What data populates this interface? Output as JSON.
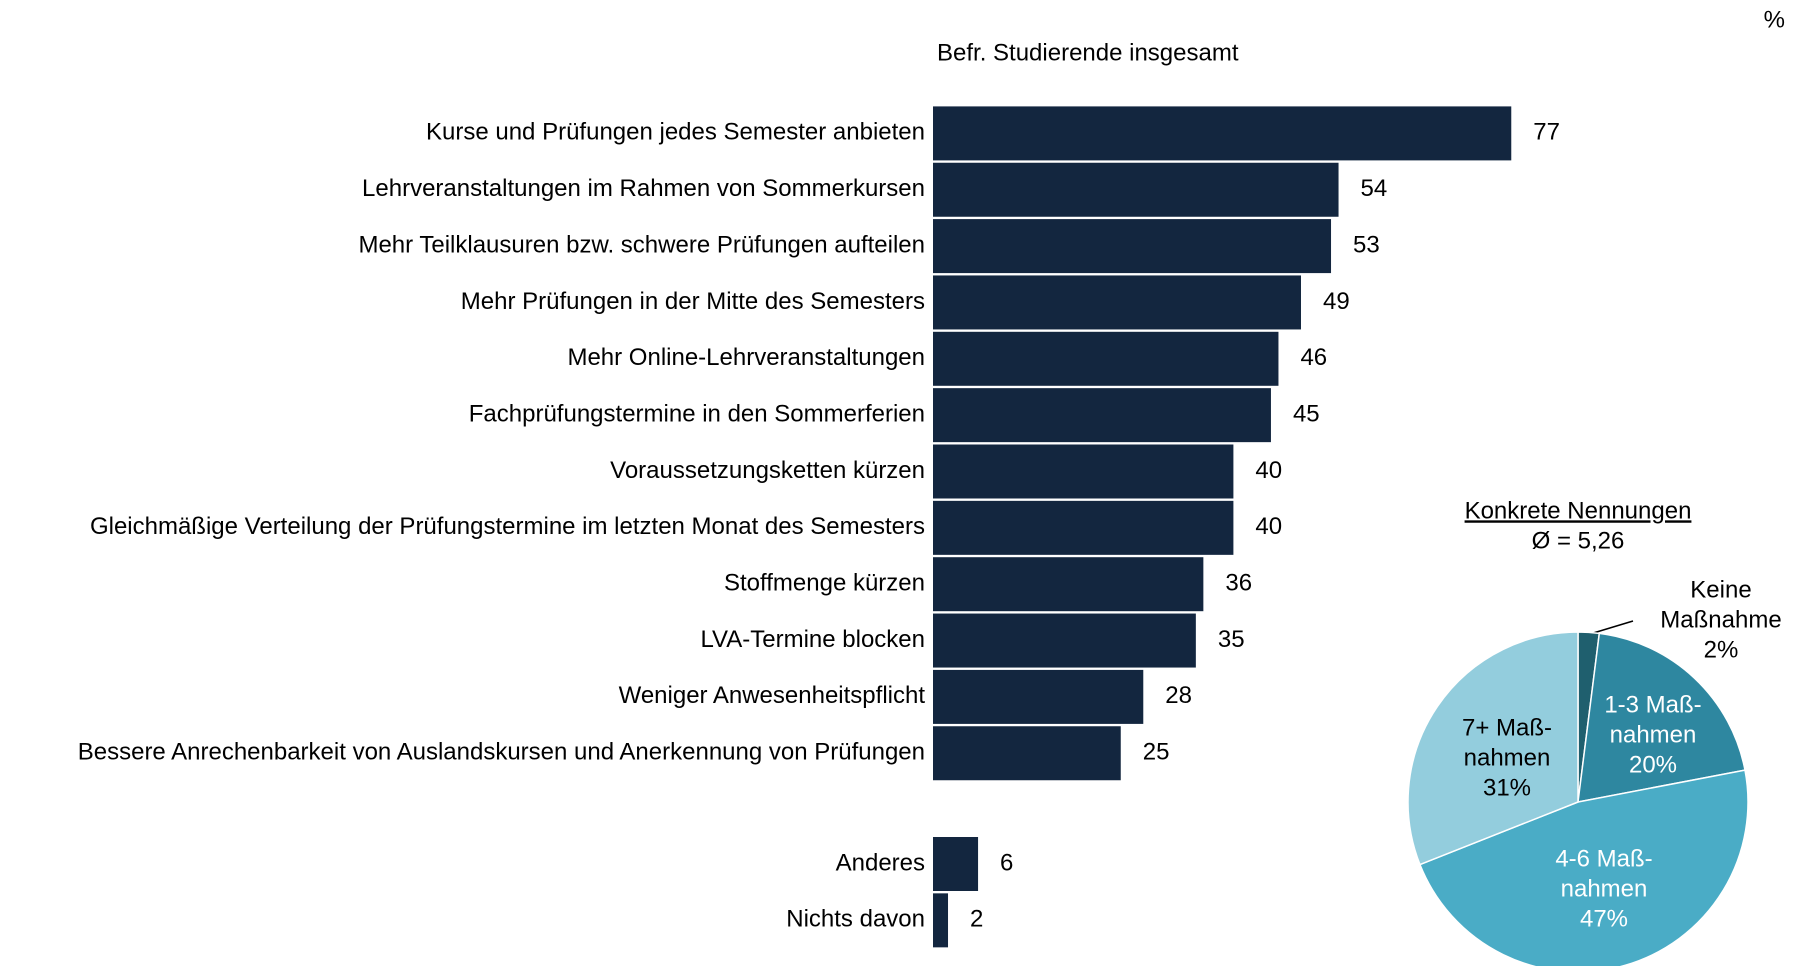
{
  "chart_data": [
    {
      "type": "bar",
      "orientation": "horizontal",
      "title": "Befr. Studierende insgesamt",
      "unit": "%",
      "color": "#13263f",
      "categories": [
        "Kurse und Prüfungen jedes Semester anbieten",
        "Lehrveranstaltungen im Rahmen von Sommerkursen",
        "Mehr Teilklausuren bzw. schwere Prüfungen aufteilen",
        "Mehr Prüfungen in der Mitte des Semesters",
        "Mehr Online-Lehrveranstaltungen",
        "Fachprüfungstermine in den Sommerferien",
        "Voraussetzungsketten kürzen",
        "Gleichmäßige Verteilung der Prüfungstermine im letzten Monat des Semesters",
        "Stoffmenge kürzen",
        "LVA-Termine blocken",
        "Weniger Anwesenheitspflicht",
        "Bessere Anrechenbarkeit von Auslandskursen und Anerkennung von Prüfungen",
        "Anderes",
        "Nichts davon"
      ],
      "values": [
        77,
        54,
        53,
        49,
        46,
        45,
        40,
        40,
        36,
        35,
        28,
        25,
        6,
        2
      ]
    },
    {
      "type": "pie",
      "title": "Konkrete Nennungen",
      "subtitle": "Ø = 5,26",
      "categories": [
        [
          "Keine",
          "Maßnahme"
        ],
        [
          "1-3 Maß-",
          "nahmen"
        ],
        [
          "4-6 Maß-",
          "nahmen"
        ],
        [
          "7+ Maß-",
          "nahmen"
        ]
      ],
      "values": [
        2,
        20,
        47,
        31
      ],
      "value_labels": [
        "2%",
        "20%",
        "47%",
        "31%"
      ],
      "colors": [
        "#1f5f6e",
        "#2e87a0",
        "#4aacc6",
        "#93cddd"
      ]
    }
  ]
}
